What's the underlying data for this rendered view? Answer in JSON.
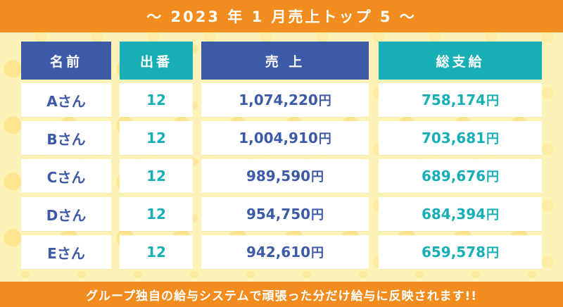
{
  "header": {
    "title": "～ 2023 年 1 月売上トップ 5 ～"
  },
  "columns": [
    "名前",
    "出番",
    "売 上",
    "総支給"
  ],
  "rows": [
    {
      "name": "Aさん",
      "shifts": "12",
      "sales": "1,074,220",
      "pay": "758,174"
    },
    {
      "name": "Bさん",
      "shifts": "12",
      "sales": "1,004,910",
      "pay": "703,681"
    },
    {
      "name": "Cさん",
      "shifts": "12",
      "sales": "989,590",
      "pay": "689,676"
    },
    {
      "name": "Dさん",
      "shifts": "12",
      "sales": "954,750",
      "pay": "684,394"
    },
    {
      "name": "Eさん",
      "shifts": "12",
      "sales": "942,610",
      "pay": "659,578"
    }
  ],
  "currency": "円",
  "footer": {
    "message": "グループ独自の給与システムで頑張った分だけ給与に反映されます!!"
  },
  "colors": {
    "orange": "#f28c1f",
    "navy": "#3d5aa6",
    "teal": "#18aeb6",
    "background": "#fdf3b8"
  }
}
